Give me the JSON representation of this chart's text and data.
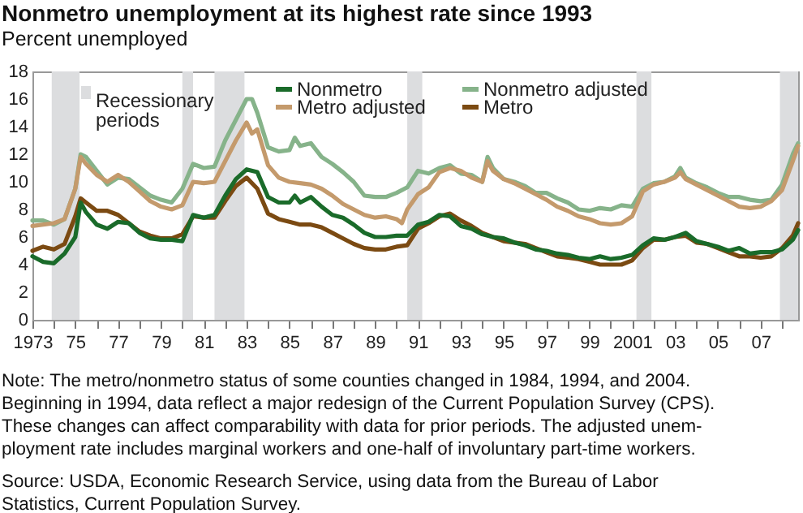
{
  "chart_data": {
    "type": "line",
    "title": "Nonmetro unemployment at its highest rate since 1993",
    "subtitle": "Percent unemployed",
    "xlim": [
      1973,
      2008.75
    ],
    "xticks": [
      {
        "value": 1973,
        "label": "1973"
      },
      {
        "value": 1974,
        "label": null
      },
      {
        "value": 1975,
        "label": "75"
      },
      {
        "value": 1976,
        "label": null
      },
      {
        "value": 1977,
        "label": "77"
      },
      {
        "value": 1978,
        "label": null
      },
      {
        "value": 1979,
        "label": "79"
      },
      {
        "value": 1980,
        "label": null
      },
      {
        "value": 1981,
        "label": "81"
      },
      {
        "value": 1982,
        "label": null
      },
      {
        "value": 1983,
        "label": "83"
      },
      {
        "value": 1984,
        "label": null
      },
      {
        "value": 1985,
        "label": "85"
      },
      {
        "value": 1986,
        "label": null
      },
      {
        "value": 1987,
        "label": "87"
      },
      {
        "value": 1988,
        "label": null
      },
      {
        "value": 1989,
        "label": "89"
      },
      {
        "value": 1990,
        "label": null
      },
      {
        "value": 1991,
        "label": "91"
      },
      {
        "value": 1992,
        "label": null
      },
      {
        "value": 1993,
        "label": "93"
      },
      {
        "value": 1994,
        "label": null
      },
      {
        "value": 1995,
        "label": "95"
      },
      {
        "value": 1996,
        "label": null
      },
      {
        "value": 1997,
        "label": "97"
      },
      {
        "value": 1998,
        "label": null
      },
      {
        "value": 1999,
        "label": "99"
      },
      {
        "value": 2000,
        "label": null
      },
      {
        "value": 2001,
        "label": "2001"
      },
      {
        "value": 2002,
        "label": null
      },
      {
        "value": 2003,
        "label": "03"
      },
      {
        "value": 2004,
        "label": null
      },
      {
        "value": 2005,
        "label": "05"
      },
      {
        "value": 2006,
        "label": null
      },
      {
        "value": 2007,
        "label": "07"
      },
      {
        "value": 2008,
        "label": null
      }
    ],
    "ylim": [
      0,
      18
    ],
    "yticks": [
      0,
      2,
      4,
      6,
      8,
      10,
      12,
      14,
      16,
      18
    ],
    "grid": false,
    "legend": "top",
    "marker": "none",
    "line_style": "solid",
    "bands": [
      {
        "axis": "x",
        "from": 1973.9,
        "to": 1975.2,
        "label": "Recessionary periods",
        "color": "#dcdddf"
      },
      {
        "axis": "x",
        "from": 1980.0,
        "to": 1980.5,
        "color": "#dcdddf"
      },
      {
        "axis": "x",
        "from": 1981.5,
        "to": 1982.9,
        "color": "#dcdddf"
      },
      {
        "axis": "x",
        "from": 1990.5,
        "to": 1991.2,
        "color": "#dcdddf"
      },
      {
        "axis": "x",
        "from": 2001.2,
        "to": 2001.9,
        "color": "#dcdddf"
      },
      {
        "axis": "x",
        "from": 2007.9,
        "to": 2008.75,
        "color": "#dcdddf"
      }
    ],
    "series": [
      {
        "name": "Nonmetro adjusted",
        "color": "#86b38a",
        "x": [
          1973,
          1973.5,
          1974,
          1974.5,
          1975,
          1975.25,
          1975.5,
          1976,
          1976.5,
          1977,
          1977.5,
          1978,
          1978.5,
          1979,
          1979.5,
          1980,
          1980.5,
          1981,
          1981.5,
          1982,
          1982.5,
          1983,
          1983.25,
          1983.5,
          1984,
          1984.5,
          1985,
          1985.25,
          1985.5,
          1986,
          1986.5,
          1987,
          1987.5,
          1988,
          1988.5,
          1989,
          1989.5,
          1990,
          1990.5,
          1991,
          1991.5,
          1992,
          1992.5,
          1993,
          1993.5,
          1994,
          1994.25,
          1994.5,
          1995,
          1995.5,
          1996,
          1996.5,
          1997,
          1997.5,
          1998,
          1998.5,
          1999,
          1999.5,
          2000,
          2000.5,
          2001,
          2001.5,
          2002,
          2002.5,
          2003,
          2003.25,
          2003.5,
          2004,
          2004.5,
          2005,
          2005.5,
          2006,
          2006.5,
          2007,
          2007.5,
          2008,
          2008.5,
          2008.75
        ],
        "values": [
          7.2,
          7.2,
          6.9,
          7.3,
          9.5,
          12.0,
          11.8,
          10.8,
          9.8,
          10.3,
          10.2,
          9.6,
          9.0,
          8.7,
          8.5,
          9.5,
          11.3,
          11.0,
          11.1,
          13.0,
          14.5,
          16.0,
          16.0,
          15.0,
          12.5,
          12.2,
          12.3,
          13.2,
          12.6,
          12.8,
          11.8,
          11.3,
          10.7,
          10.0,
          9.0,
          8.9,
          8.9,
          9.2,
          9.6,
          10.8,
          10.6,
          11.0,
          11.2,
          10.6,
          10.5,
          10.0,
          11.8,
          11.0,
          10.2,
          10.0,
          9.7,
          9.2,
          9.2,
          8.8,
          8.5,
          8.0,
          7.9,
          8.1,
          8.0,
          8.3,
          8.2,
          9.5,
          9.9,
          10.0,
          10.4,
          11.0,
          10.3,
          9.9,
          9.6,
          9.2,
          8.9,
          8.9,
          8.7,
          8.6,
          8.7,
          9.8,
          12.0,
          12.8
        ]
      },
      {
        "name": "Metro adjusted",
        "color": "#c49a6c",
        "x": [
          1973,
          1974,
          1974.5,
          1975,
          1975.25,
          1975.5,
          1976,
          1976.5,
          1977,
          1977.5,
          1978,
          1978.5,
          1979,
          1979.5,
          1980,
          1980.5,
          1981,
          1981.5,
          1982,
          1982.5,
          1983,
          1983.25,
          1983.5,
          1984,
          1984.5,
          1985,
          1985.5,
          1986,
          1986.5,
          1987,
          1987.5,
          1988,
          1988.5,
          1989,
          1989.5,
          1990,
          1990.25,
          1990.5,
          1991,
          1991.5,
          1992,
          1992.5,
          1993,
          1993.5,
          1994,
          1994.25,
          1994.5,
          1995,
          1995.5,
          1996,
          1996.5,
          1997,
          1997.5,
          1998,
          1998.5,
          1999,
          1999.5,
          2000,
          2000.5,
          2001,
          2001.5,
          2002,
          2002.5,
          2003,
          2003.25,
          2003.5,
          2004,
          2004.5,
          2005,
          2005.5,
          2006,
          2006.5,
          2007,
          2007.5,
          2008,
          2008.5,
          2008.75
        ],
        "values": [
          6.8,
          7.0,
          7.3,
          9.5,
          11.8,
          11.3,
          10.5,
          10.0,
          10.5,
          10.0,
          9.3,
          8.6,
          8.2,
          8.0,
          8.3,
          10.0,
          9.9,
          10.0,
          11.5,
          13.0,
          14.3,
          13.5,
          13.8,
          11.2,
          10.3,
          10.0,
          9.9,
          9.8,
          9.5,
          9.0,
          8.4,
          8.0,
          7.6,
          7.4,
          7.5,
          7.3,
          7.0,
          8.0,
          9.1,
          9.6,
          10.7,
          11.0,
          10.8,
          10.3,
          10.0,
          11.5,
          10.8,
          10.2,
          9.9,
          9.5,
          9.1,
          8.7,
          8.2,
          7.9,
          7.5,
          7.3,
          7.0,
          6.9,
          7.0,
          7.5,
          9.3,
          9.8,
          10.0,
          10.3,
          10.7,
          10.2,
          9.8,
          9.4,
          9.0,
          8.6,
          8.2,
          8.1,
          8.2,
          8.6,
          9.4,
          11.5,
          12.6
        ]
      },
      {
        "name": "Metro",
        "color": "#7b4a12",
        "x": [
          1973,
          1973.5,
          1974,
          1974.5,
          1975,
          1975.25,
          1975.5,
          1976,
          1976.5,
          1977,
          1977.5,
          1978,
          1978.5,
          1979,
          1979.5,
          1980,
          1980.5,
          1981,
          1981.5,
          1982,
          1982.5,
          1983,
          1983.5,
          1984,
          1984.5,
          1985,
          1985.5,
          1986,
          1986.5,
          1987,
          1987.5,
          1988,
          1988.5,
          1989,
          1989.5,
          1990,
          1990.5,
          1991,
          1991.5,
          1992,
          1992.5,
          1993,
          1993.5,
          1994,
          1994.5,
          1995,
          1995.5,
          1996,
          1996.5,
          1997,
          1997.5,
          1998,
          1998.5,
          1999,
          1999.5,
          2000,
          2000.5,
          2001,
          2001.5,
          2002,
          2002.5,
          2003,
          2003.5,
          2004,
          2004.5,
          2005,
          2005.5,
          2006,
          2006.5,
          2007,
          2007.5,
          2008,
          2008.5,
          2008.75
        ],
        "values": [
          5.0,
          5.3,
          5.1,
          5.5,
          7.5,
          8.8,
          8.5,
          7.9,
          7.9,
          7.6,
          7.0,
          6.4,
          6.1,
          5.9,
          5.9,
          6.2,
          7.5,
          7.4,
          7.4,
          8.6,
          9.7,
          10.3,
          9.5,
          7.7,
          7.3,
          7.1,
          6.9,
          6.9,
          6.7,
          6.3,
          5.9,
          5.5,
          5.2,
          5.1,
          5.1,
          5.3,
          5.4,
          6.6,
          7.0,
          7.5,
          7.7,
          7.2,
          6.8,
          6.3,
          6.0,
          5.7,
          5.6,
          5.5,
          5.2,
          4.9,
          4.6,
          4.5,
          4.4,
          4.2,
          4.0,
          4.0,
          4.0,
          4.3,
          5.2,
          5.8,
          5.8,
          6.0,
          6.1,
          5.6,
          5.5,
          5.2,
          4.9,
          4.6,
          4.6,
          4.5,
          4.6,
          5.2,
          6.1,
          7.0
        ]
      },
      {
        "name": "Nonmetro",
        "color": "#1a6b2a",
        "x": [
          1973,
          1973.5,
          1974,
          1974.5,
          1975,
          1975.25,
          1975.5,
          1976,
          1976.5,
          1977,
          1977.5,
          1978,
          1978.5,
          1979,
          1979.5,
          1980,
          1980.5,
          1981,
          1981.5,
          1982,
          1982.5,
          1983,
          1983.5,
          1984,
          1984.5,
          1985,
          1985.25,
          1985.5,
          1986,
          1986.5,
          1987,
          1987.5,
          1988,
          1988.5,
          1989,
          1989.5,
          1990,
          1990.5,
          1991,
          1991.5,
          1992,
          1992.5,
          1993,
          1993.5,
          1994,
          1994.5,
          1995,
          1995.5,
          1996,
          1996.5,
          1997,
          1997.5,
          1998,
          1998.5,
          1999,
          1999.5,
          2000,
          2000.5,
          2001,
          2001.5,
          2002,
          2002.5,
          2003,
          2003.5,
          2004,
          2004.5,
          2005,
          2005.5,
          2006,
          2006.5,
          2007,
          2007.5,
          2008,
          2008.5,
          2008.75
        ],
        "values": [
          4.6,
          4.2,
          4.1,
          4.8,
          6.0,
          8.5,
          7.8,
          6.9,
          6.6,
          7.1,
          7.0,
          6.3,
          5.9,
          5.8,
          5.8,
          5.7,
          7.6,
          7.4,
          7.6,
          9.0,
          10.2,
          10.9,
          10.7,
          8.9,
          8.5,
          8.5,
          9.0,
          8.5,
          8.9,
          8.2,
          7.6,
          7.4,
          6.9,
          6.3,
          6.0,
          6.0,
          6.1,
          6.1,
          6.9,
          7.1,
          7.6,
          7.5,
          6.8,
          6.6,
          6.2,
          6.0,
          5.9,
          5.6,
          5.4,
          5.1,
          5.0,
          4.8,
          4.7,
          4.5,
          4.4,
          4.6,
          4.4,
          4.5,
          4.7,
          5.4,
          5.9,
          5.8,
          6.0,
          6.3,
          5.7,
          5.5,
          5.3,
          5.0,
          5.2,
          4.8,
          4.9,
          4.9,
          5.1,
          5.8,
          6.5
        ]
      }
    ],
    "annotations": [
      "Note: The metro/nonmetro status of some counties changed in 1984, 1994, and 2004.",
      "Beginning in 1994, data reflect a major redesign of the Current Population Survey (CPS).",
      "These changes can affect comparability with data for prior periods. The adjusted unem-",
      "ployment rate includes marginal workers and one-half of involuntary part-time workers.",
      "Source: USDA, Economic Research Service, using data from the Bureau of Labor",
      "Statistics, Current Population Survey."
    ]
  }
}
